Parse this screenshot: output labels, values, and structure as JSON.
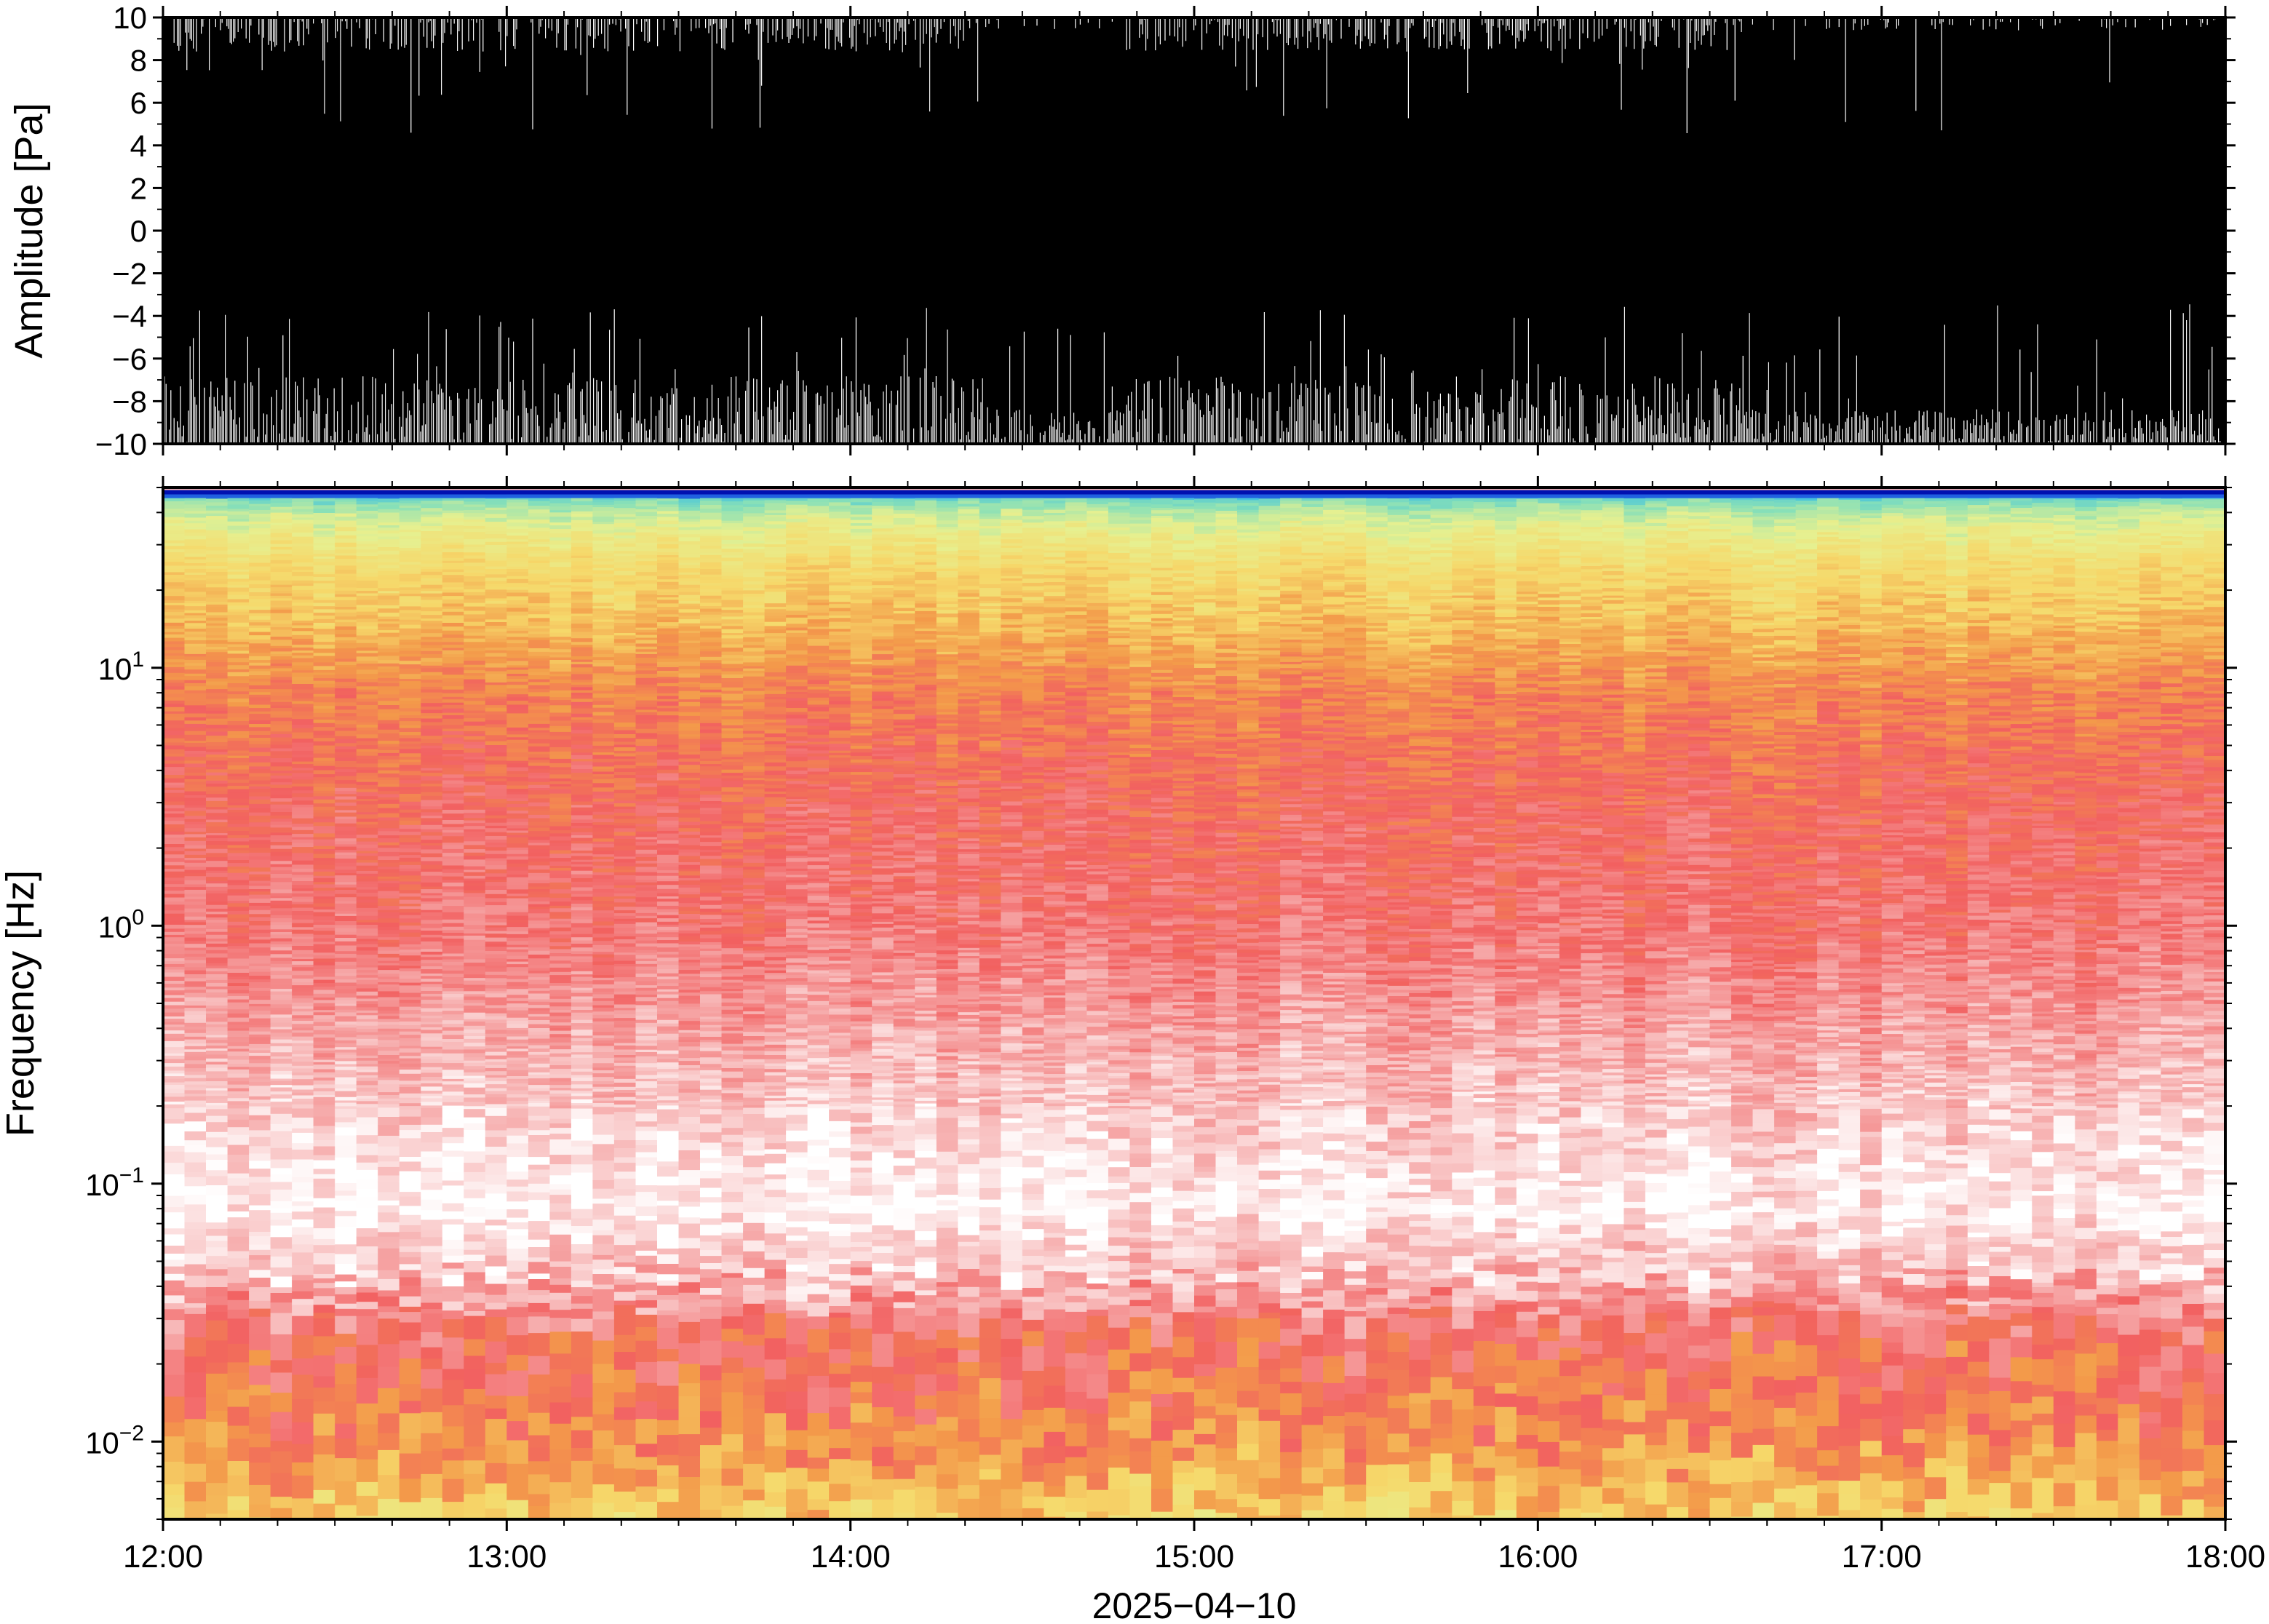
{
  "chart_data": [
    {
      "type": "line",
      "ylabel": "Amplitude [Pa]",
      "ylim": [
        -10,
        10
      ],
      "yticks": [
        "10",
        "8",
        "6",
        "4",
        "2",
        "0",
        "−2",
        "−4",
        "−6",
        "−8",
        "−10"
      ],
      "ytick_values": [
        10,
        8,
        6,
        4,
        2,
        0,
        -2,
        -4,
        -6,
        -8,
        -10
      ],
      "xlim": [
        "12:00",
        "18:00"
      ],
      "series": [
        {
          "sample_hours": [
            0,
            0.25,
            0.5,
            0.75,
            1,
            1.25,
            1.5,
            1.75,
            2,
            2.25,
            2.5,
            2.75,
            3,
            3.25,
            3.5,
            3.75,
            4,
            4.25,
            4.5,
            4.75,
            5,
            5.25,
            5.5,
            5.75,
            6
          ],
          "envelope_upper_pa": [
            10,
            10,
            10,
            10,
            10,
            10,
            10,
            10,
            10,
            10,
            10,
            10,
            10,
            10,
            10,
            10,
            10,
            10,
            10,
            10,
            10,
            10,
            10,
            10,
            10
          ],
          "envelope_lower_pa": [
            -10,
            -10,
            -10,
            -10,
            -10,
            -10,
            -10,
            -10,
            -10,
            -10,
            -10,
            -10,
            -10,
            -10,
            -10,
            -10,
            -10,
            -10,
            -10,
            -10,
            -10,
            -10,
            -10,
            -10,
            -10
          ],
          "waveform_color": "#000000"
        }
      ]
    },
    {
      "type": "heatmap",
      "ylabel": "Frequency [Hz]",
      "xlabel": "2025−04−10",
      "yscale": "log",
      "ylim": [
        0.005,
        50
      ],
      "yticks": [
        {
          "base": "10",
          "exp": "1",
          "value": 10
        },
        {
          "base": "10",
          "exp": "0",
          "value": 1
        },
        {
          "base": "10",
          "exp": "−1",
          "value": 0.1
        },
        {
          "base": "10",
          "exp": "−2",
          "value": 0.01
        }
      ],
      "xticks": [
        "12:00",
        "13:00",
        "14:00",
        "15:00",
        "16:00",
        "17:00",
        "18:00"
      ],
      "xtick_hours": [
        0,
        1,
        2,
        3,
        4,
        5,
        6
      ],
      "colormap": "white-red-orange-yellow-green-cyan-blue (relative power)",
      "colormap_stops": [
        "#ffffff",
        "#f6aaaa",
        "#f26060",
        "#f39a4a",
        "#f6d86a",
        "#e6f090",
        "#88e0b8",
        "#40c0e0",
        "#0010c0"
      ],
      "freq_levels_hz": [
        47,
        45,
        40,
        35,
        25,
        15,
        8,
        3,
        1,
        0.4,
        0.15,
        0.08,
        0.04,
        0.025,
        0.016,
        0.01,
        0.007,
        0.005
      ],
      "relative_power_levels": [
        0.98,
        0.78,
        0.68,
        0.62,
        0.52,
        0.45,
        0.33,
        0.26,
        0.22,
        0.14,
        0.06,
        0.02,
        0.12,
        0.26,
        0.3,
        0.35,
        0.42,
        0.48
      ]
    }
  ]
}
